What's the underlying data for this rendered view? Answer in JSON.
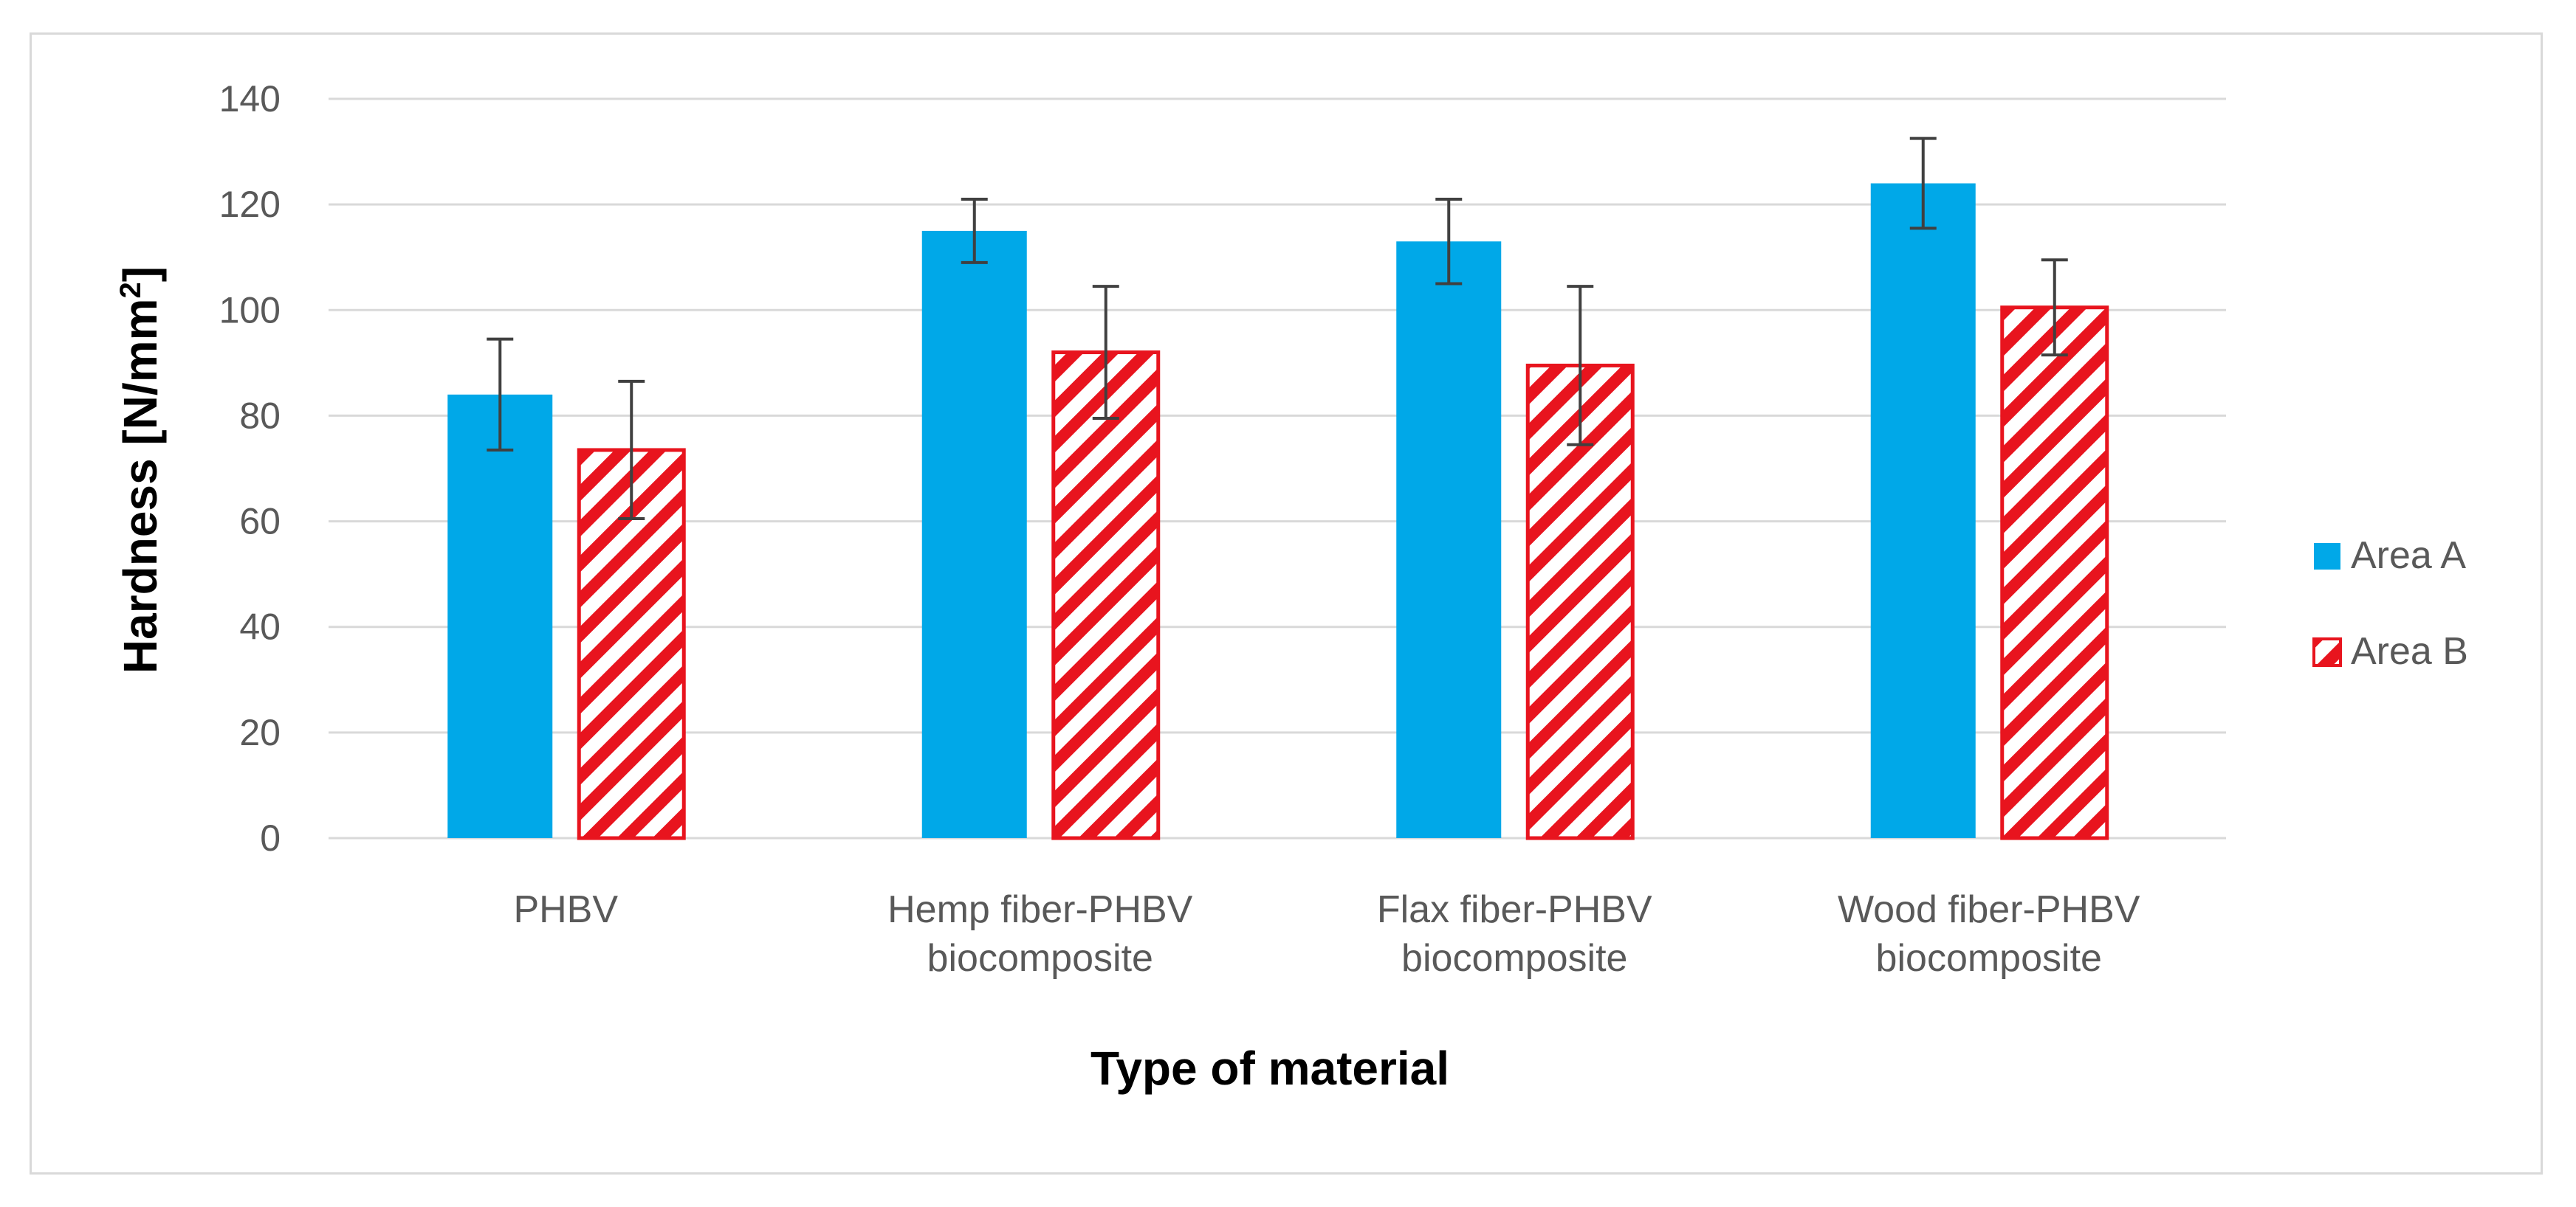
{
  "chart_data": {
    "type": "bar",
    "title": "",
    "xlabel": "Type of material",
    "ylabel_main": "Hardness [N/mm",
    "ylabel_sup": "2",
    "ylabel_end": "]",
    "ylim": [
      0,
      140
    ],
    "ytick_step": 20,
    "yticks": [
      "0",
      "20",
      "40",
      "60",
      "80",
      "100",
      "120",
      "140"
    ],
    "grid": true,
    "legend_position": "right",
    "categories": [
      [
        "PHBV"
      ],
      [
        "Hemp fiber-PHBV",
        "biocomposite"
      ],
      [
        "Flax fiber-PHBV",
        "biocomposite"
      ],
      [
        "Wood fiber-PHBV",
        "biocomposite"
      ]
    ],
    "series": [
      {
        "name": "Area A",
        "color": "#00a8e8",
        "pattern": "solid",
        "values": [
          84,
          115,
          113,
          124
        ],
        "errors": [
          10.5,
          6,
          8,
          8.5
        ]
      },
      {
        "name": "Area B",
        "color": "#e8141e",
        "pattern": "hatched",
        "values": [
          73.5,
          92,
          89.5,
          100.5
        ],
        "errors": [
          13,
          12.5,
          15,
          9
        ]
      }
    ]
  }
}
